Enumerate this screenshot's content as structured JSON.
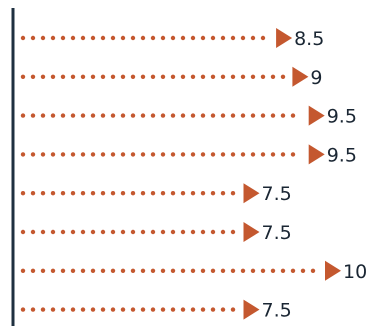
{
  "chart_data": {
    "type": "bar",
    "orientation": "horizontal",
    "style": "dotted-arrow",
    "title": "",
    "xlabel": "",
    "ylabel": "",
    "categories": [
      "",
      "",
      "",
      "",
      "",
      "",
      "",
      ""
    ],
    "values": [
      8.5,
      9,
      9.5,
      9.5,
      7.5,
      7.5,
      10,
      7.5
    ],
    "value_labels": [
      "8.5",
      "9",
      "9.5",
      "9.5",
      "7.5",
      "7.5",
      "10",
      "7.5"
    ],
    "xlim": [
      0,
      10
    ],
    "grid": false,
    "legend": "none",
    "colors": {
      "marker": "#c4582f",
      "axis": "#1f3040",
      "label": "#1a2633"
    }
  }
}
